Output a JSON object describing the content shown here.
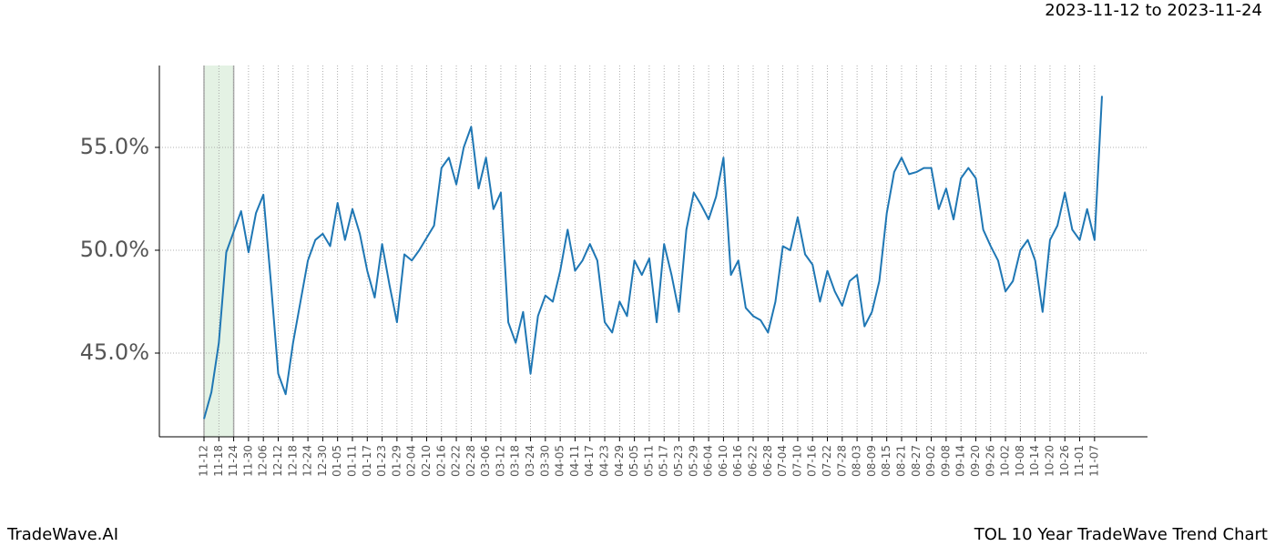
{
  "chart_data": {
    "type": "line",
    "subtitle": "2023-11-12 to 2023-11-24",
    "title": "TOL 10 Year TradeWave Trend Chart",
    "watermark": "TradeWave.AI",
    "highlight_range": [
      "11-12",
      "11-24"
    ],
    "categories": [
      "11-12",
      null,
      "11-18",
      null,
      "11-24",
      null,
      "11-30",
      null,
      "12-06",
      null,
      "12-12",
      null,
      "12-18",
      null,
      "12-24",
      null,
      "12-30",
      null,
      "01-05",
      null,
      "01-11",
      null,
      "01-17",
      null,
      "01-23",
      null,
      "01-29",
      null,
      "02-04",
      null,
      "02-10",
      null,
      "02-16",
      null,
      "02-22",
      null,
      "02-28",
      null,
      "03-06",
      null,
      "03-12",
      null,
      "03-18",
      null,
      "03-24",
      null,
      "03-30",
      null,
      "04-05",
      null,
      "04-11",
      null,
      "04-17",
      null,
      "04-23",
      null,
      "04-29",
      null,
      "05-05",
      null,
      "05-11",
      null,
      "05-17",
      null,
      "05-23",
      null,
      "05-29",
      null,
      "06-04",
      null,
      "06-10",
      null,
      "06-16",
      null,
      "06-22",
      null,
      "06-28",
      null,
      "07-04",
      null,
      "07-10",
      null,
      "07-16",
      null,
      "07-22",
      null,
      "07-28",
      null,
      "08-03",
      null,
      "08-09",
      null,
      "08-15",
      null,
      "08-21",
      null,
      "08-27",
      null,
      "09-02",
      null,
      "09-08",
      null,
      "09-14",
      null,
      "09-20",
      null,
      "09-26",
      null,
      "10-02",
      null,
      "10-08",
      null,
      "10-14",
      null,
      "10-20",
      null,
      "10-26",
      null,
      "11-01",
      null,
      "11-07",
      null
    ],
    "series": [
      {
        "name": "TOL",
        "color": "#1f77b4",
        "values": [
          41.8,
          43.1,
          45.5,
          49.9,
          50.9,
          51.9,
          49.9,
          51.8,
          52.7,
          48.5,
          44.0,
          43.0,
          45.5,
          47.5,
          49.5,
          50.5,
          50.8,
          50.2,
          52.3,
          50.5,
          52.0,
          50.8,
          49.0,
          47.7,
          50.3,
          48.3,
          46.5,
          49.8,
          49.5,
          50.0,
          50.6,
          51.2,
          54.0,
          54.5,
          53.2,
          55.0,
          56.0,
          53.0,
          54.5,
          52.0,
          52.8,
          46.5,
          45.5,
          47.0,
          44.0,
          46.8,
          47.8,
          47.5,
          49.0,
          51.0,
          49.0,
          49.5,
          50.3,
          49.5,
          46.5,
          46.0,
          47.5,
          46.8,
          49.5,
          48.8,
          49.6,
          46.5,
          50.3,
          48.8,
          47.0,
          51.0,
          52.8,
          52.2,
          51.5,
          52.6,
          54.5,
          48.8,
          49.5,
          47.2,
          46.8,
          46.6,
          46.0,
          47.5,
          50.2,
          50.0,
          51.6,
          49.8,
          49.3,
          47.5,
          49.0,
          48.0,
          47.3,
          48.5,
          48.8,
          46.3,
          47.0,
          48.5,
          51.8,
          53.8,
          54.5,
          53.7,
          53.8,
          54.0,
          54.0,
          52.0,
          53.0,
          51.5,
          53.5,
          54.0,
          53.5,
          51.0,
          50.2,
          49.5,
          48.0,
          48.5,
          50.0,
          50.5,
          49.5,
          47.0,
          50.5,
          51.2,
          52.8,
          51.0,
          50.5,
          52.0,
          50.5,
          57.5
        ]
      }
    ],
    "ylim": [
      40.93,
      58.98
    ],
    "yticks": [
      {
        "value": 45,
        "label": "45.0%"
      },
      {
        "value": 50,
        "label": "50.0%"
      },
      {
        "value": 55,
        "label": "55.0%"
      }
    ],
    "grid": true
  }
}
